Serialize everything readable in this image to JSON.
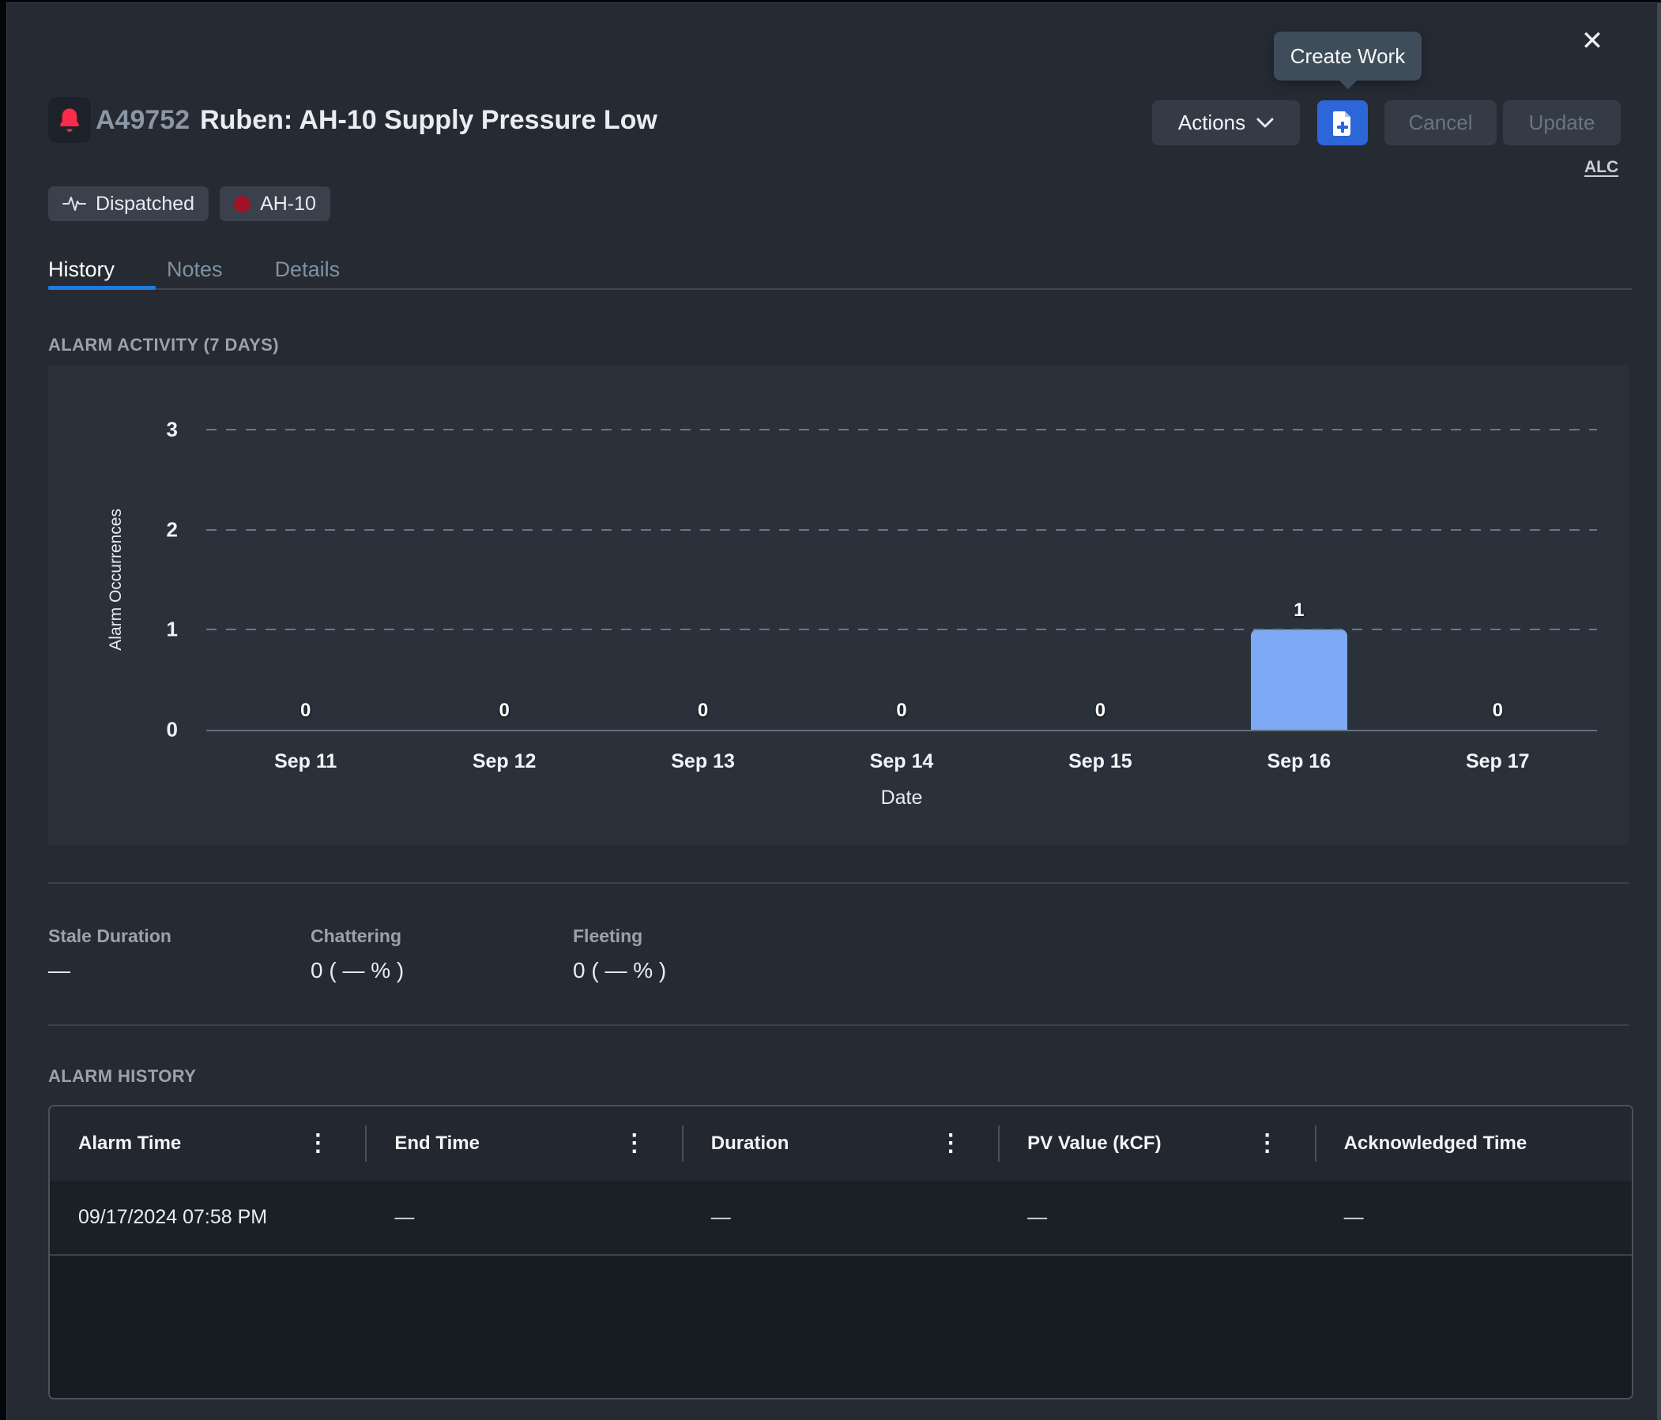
{
  "window": {
    "close_label": "✕"
  },
  "header": {
    "alarm_id": "A49752",
    "alarm_title": "Ruben: AH-10 Supply Pressure Low",
    "tooltip": "Create Work",
    "actions_label": "Actions",
    "cancel_label": "Cancel",
    "update_label": "Update",
    "alc_label": "ALC"
  },
  "badges": [
    {
      "label": "Dispatched",
      "icon": "pulse-icon"
    },
    {
      "label": "AH-10",
      "icon": "red-dot-icon"
    }
  ],
  "tabs": [
    {
      "label": "History",
      "active": true
    },
    {
      "label": "Notes",
      "active": false
    },
    {
      "label": "Details",
      "active": false
    }
  ],
  "activity": {
    "section_title": "ALARM ACTIVITY (7 DAYS)"
  },
  "chart_data": {
    "type": "bar",
    "title": "ALARM ACTIVITY (7 DAYS)",
    "categories": [
      "Sep 11",
      "Sep 12",
      "Sep 13",
      "Sep 14",
      "Sep 15",
      "Sep 16",
      "Sep 17"
    ],
    "values": [
      0,
      0,
      0,
      0,
      0,
      1,
      0
    ],
    "xlabel": "Date",
    "ylabel": "Alarm Occurrences",
    "ylim": [
      0,
      3
    ],
    "yticks": [
      0,
      1,
      2,
      3
    ],
    "grid": "horizontal-dashed",
    "legend": "none",
    "bar_color": "#7ea9f4"
  },
  "stats": [
    {
      "label": "Stale Duration",
      "value": "—"
    },
    {
      "label": "Chattering",
      "value": "0 (  — % )"
    },
    {
      "label": "Fleeting",
      "value": "0 (  — % )"
    }
  ],
  "history": {
    "section_title": "ALARM HISTORY",
    "columns": [
      "Alarm Time",
      "End Time",
      "Duration",
      "PV Value (kCF)",
      "Acknowledged Time"
    ],
    "rows": [
      [
        "09/17/2024 07:58 PM",
        "—",
        "—",
        "—",
        "—"
      ]
    ]
  },
  "colors": {
    "accent_blue": "#2d66d9",
    "tab_active_blue": "#1e7ce2",
    "bar_blue": "#7ea9f4",
    "alarm_red": "#fb2b4a",
    "tag_dot_red": "#a01327",
    "tooltip_bg": "#3e4d59"
  }
}
